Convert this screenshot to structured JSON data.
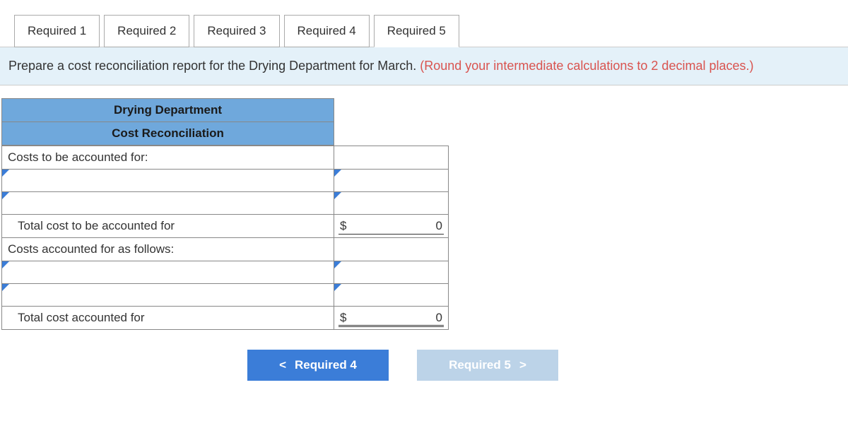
{
  "tabs": [
    {
      "label": "Required 1",
      "active": false
    },
    {
      "label": "Required 2",
      "active": false
    },
    {
      "label": "Required 3",
      "active": false
    },
    {
      "label": "Required 4",
      "active": false
    },
    {
      "label": "Required 5",
      "active": true
    }
  ],
  "instruction": {
    "main": "Prepare a cost reconciliation report for the Drying Department for March. ",
    "hint": "(Round your intermediate calculations to 2 decimal places.)"
  },
  "table": {
    "header1": "Drying Department",
    "header2": "Cost Reconciliation",
    "row_costs_to_be": "Costs to be accounted for:",
    "row_total_to_be": "Total cost to be accounted for",
    "row_costs_acct_follows": "Costs accounted for as follows:",
    "row_total_acct": "Total cost accounted for",
    "currency": "$",
    "val_total_to_be": "0",
    "val_total_acct": "0"
  },
  "nav": {
    "prev": "Required 4",
    "next": "Required 5"
  },
  "colors": {
    "header_bg": "#6fa8dc",
    "instruction_bg": "#e4f1f9",
    "hint_color": "#d9534f",
    "prev_btn_bg": "#3b7dd8",
    "next_btn_bg": "#bcd3e8",
    "tick_color": "#3b7dd8"
  }
}
